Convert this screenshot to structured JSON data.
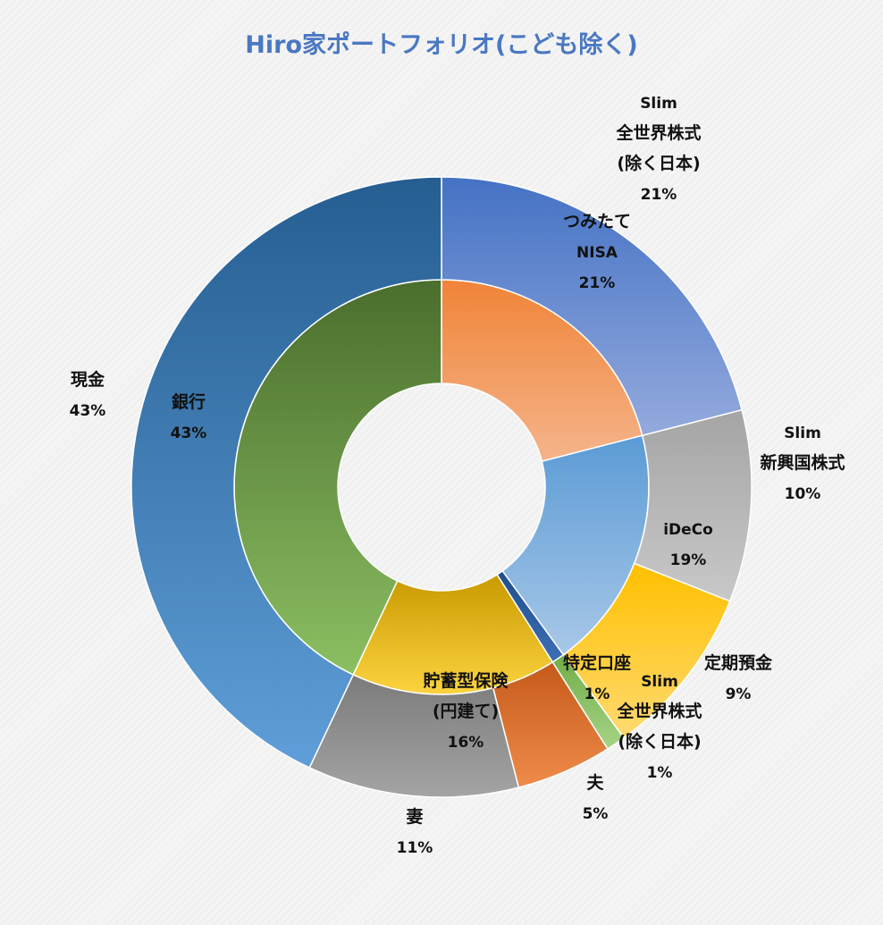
{
  "chart_data": {
    "type": "pie",
    "title": "Hiro家ポートフォリオ(こども除く)",
    "series": [
      {
        "values": [
          21,
          19,
          1,
          16,
          43
        ],
        "labels": [
          {
            "lines": [
              "つみたて",
              "NISA"
            ],
            "pct": "21%"
          },
          {
            "lines": [
              "iDeCo"
            ],
            "pct": "19%"
          },
          {
            "lines": [
              "特定口座"
            ],
            "pct": "1%"
          },
          {
            "lines": [
              "貯蓄型保険",
              "(円建て)"
            ],
            "pct": "16%"
          },
          {
            "lines": [
              "銀行"
            ],
            "pct": "43%"
          }
        ],
        "colors": [
          [
            "#f08438",
            "#f5b48a"
          ],
          [
            "#5b9bd5",
            "#a8c8e8"
          ],
          [
            "#1f4e8c",
            "#3e6fb6"
          ],
          [
            "#c99a00",
            "#fcd340"
          ],
          [
            "#4a6e2d",
            "#8bbf62"
          ]
        ]
      },
      {
        "values": [
          21,
          10,
          9,
          1,
          5,
          11,
          43
        ],
        "labels": [
          {
            "lines": [
              "Slim",
              "全世界株式",
              "(除く日本)"
            ],
            "pct": "21%"
          },
          {
            "lines": [
              "Slim",
              "新興国株式"
            ],
            "pct": "10%"
          },
          {
            "lines": [
              "定期預金"
            ],
            "pct": "9%"
          },
          {
            "lines": [
              "Slim",
              "全世界株式",
              "(除く日本)"
            ],
            "pct": "1%"
          },
          {
            "lines": [
              "夫"
            ],
            "pct": "5%"
          },
          {
            "lines": [
              "妻"
            ],
            "pct": "11%"
          },
          {
            "lines": [
              "現金"
            ],
            "pct": "43%"
          }
        ],
        "colors": [
          [
            "#4472c4",
            "#94aadd"
          ],
          [
            "#a5a5a5",
            "#c8c8c8"
          ],
          [
            "#ffc000",
            "#ffda70"
          ],
          [
            "#70ad47",
            "#a6d486"
          ],
          [
            "#c55a1a",
            "#ef8c4a"
          ],
          [
            "#7b7b7b",
            "#a4a4a4"
          ],
          [
            "#255e91",
            "#5f9ed8"
          ]
        ]
      }
    ]
  }
}
